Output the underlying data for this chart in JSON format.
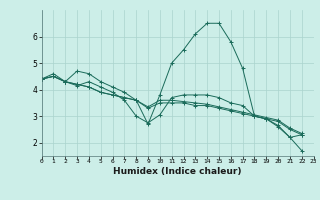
{
  "xlabel": "Humidex (Indice chaleur)",
  "bg_color": "#cceee8",
  "grid_color": "#aad4ce",
  "line_color": "#1a6b5a",
  "xlim": [
    0,
    23
  ],
  "ylim": [
    1.5,
    7.0
  ],
  "yticks": [
    2,
    3,
    4,
    5,
    6
  ],
  "xticks": [
    0,
    1,
    2,
    3,
    4,
    5,
    6,
    7,
    8,
    9,
    10,
    11,
    12,
    13,
    14,
    15,
    16,
    17,
    18,
    19,
    20,
    21,
    22,
    23
  ],
  "lines": [
    [
      0,
      4.4,
      1,
      4.6,
      2,
      4.3,
      3,
      4.7,
      4,
      4.6,
      5,
      4.3,
      6,
      4.1,
      7,
      3.9,
      8,
      3.6,
      9,
      2.7,
      10,
      3.8,
      11,
      5.0,
      12,
      5.5,
      13,
      6.1,
      14,
      6.5,
      15,
      6.5,
      16,
      5.8,
      17,
      4.8,
      18,
      3.0,
      19,
      2.9,
      20,
      2.6,
      21,
      2.2,
      22,
      2.3
    ],
    [
      0,
      4.4,
      1,
      4.5,
      2,
      4.3,
      3,
      4.2,
      4,
      4.1,
      5,
      3.9,
      6,
      3.8,
      7,
      3.7,
      8,
      3.6,
      9,
      3.3,
      10,
      3.5,
      11,
      3.5,
      12,
      3.5,
      13,
      3.4,
      14,
      3.4,
      15,
      3.3,
      16,
      3.2,
      17,
      3.1,
      18,
      3.0,
      19,
      2.9,
      20,
      2.8,
      21,
      2.5,
      22,
      2.3
    ],
    [
      0,
      4.4,
      1,
      4.5,
      2,
      4.3,
      3,
      4.2,
      4,
      4.1,
      5,
      3.9,
      6,
      3.8,
      7,
      3.7,
      8,
      3.6,
      9,
      3.35,
      10,
      3.6,
      11,
      3.6,
      12,
      3.55,
      13,
      3.5,
      14,
      3.45,
      15,
      3.35,
      16,
      3.25,
      17,
      3.15,
      18,
      3.05,
      19,
      2.95,
      20,
      2.85,
      21,
      2.55,
      22,
      2.35
    ],
    [
      0,
      4.4,
      1,
      4.5,
      2,
      4.3,
      3,
      4.15,
      4,
      4.3,
      5,
      4.1,
      6,
      3.9,
      7,
      3.6,
      8,
      3.0,
      9,
      2.75,
      10,
      3.05,
      11,
      3.7,
      12,
      3.8,
      13,
      3.8,
      14,
      3.8,
      15,
      3.7,
      16,
      3.5,
      17,
      3.4,
      18,
      3.0,
      19,
      2.9,
      20,
      2.65,
      21,
      2.2,
      22,
      1.7
    ]
  ]
}
